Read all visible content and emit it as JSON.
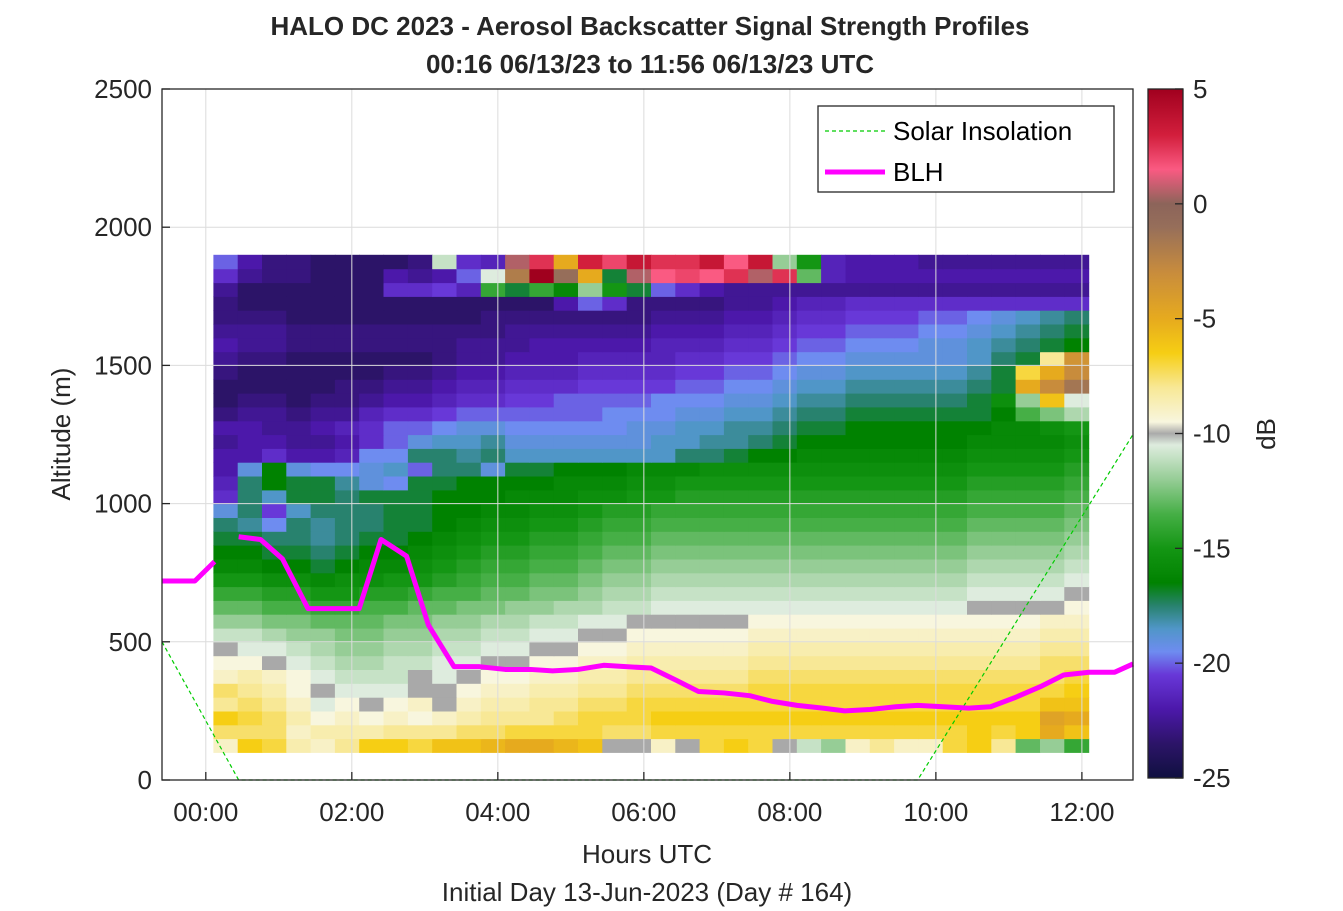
{
  "figure": {
    "title_line1": "HALO DC 2023 - Aerosol Backscatter Signal Strength Profiles",
    "title_line2": "00:16 06/13/23 to 11:56 06/13/23  UTC",
    "footer": "Initial Day 13-Jun-2023 (Day # 164)"
  },
  "chart_data": {
    "type": "heatmap",
    "title": "HALO DC 2023 - Aerosol Backscatter Signal Strength Profiles",
    "subtitle": "00:16 06/13/23 to 11:56 06/13/23  UTC",
    "xlabel": "Hours UTC",
    "ylabel": "Altitude (m)",
    "xlim": [
      -0.6,
      12.7
    ],
    "ylim": [
      0,
      2500
    ],
    "x_ticks": [
      0,
      2,
      4,
      6,
      8,
      10,
      12
    ],
    "x_tick_labels": [
      "00:00",
      "02:00",
      "04:00",
      "06:00",
      "08:00",
      "10:00",
      "12:00"
    ],
    "y_ticks": [
      0,
      500,
      1000,
      1500,
      2000,
      2500
    ],
    "y_tick_labels": [
      "0",
      "500",
      "1000",
      "1500",
      "2000",
      "2500"
    ],
    "grid": true,
    "legend_position": "top-right",
    "colorbar": {
      "label": "dB",
      "range": [
        -25,
        5
      ],
      "ticks": [
        5,
        0,
        -5,
        -10,
        -15,
        -20,
        -25
      ],
      "tick_labels": [
        "5",
        "0",
        "-5",
        "-10",
        "-15",
        "-20",
        "-25"
      ]
    },
    "heatmap": {
      "x_start": 0.27,
      "x_step": 0.333,
      "y_start": 125,
      "y_step": 50,
      "row_order": "bottom-to-top",
      "missing_value": "gap",
      "nan_color": "#a9a9a9",
      "rows": [
        "-9.0,-6.5,-7.0,-8.5,-9.0,-8.0,-6.5,-6.5,-7.0,-6.0,-6.0,-5.5,-5.0,-5.0,-5.5,-6.0,-10.0,-10.0,-9.0,-10.0,-7.0,-6.5,-7.0,-10.0,-11.0,-12.0,-9.0,-8.0,-9.0,-9.0,-7.0,-6.5,-8.0,-13.0,-12.0,-14.0",
        "-7.5,-7.5,-7.5,-9.0,-8.5,-8.5,-8.5,-8.0,-8.0,-8.0,-7.5,-7.5,-7.0,-7.0,-7.0,-7.0,-7.5,-7.5,-7.0,-7.0,-7.0,-7.0,-7.0,-7.0,-7.0,-7.0,-7.0,-7.0,-7.0,-7.0,-7.0,-6.5,-7.0,-6.5,-5.0,-6.0",
        "-6.5,-7.0,-7.5,-8.5,-9.5,-9.0,-9.5,-9.0,-9.5,-9.0,-8.5,-8.0,-8.0,-8.0,-7.5,-7.0,-7.0,-7.0,-6.5,-6.5,-6.5,-6.5,-6.5,-6.5,-6.5,-6.5,-6.5,-6.5,-6.5,-6.5,-6.5,-6.5,-6.5,-6.5,-4.5,-5.0",
        "-8.0,-7.5,-8.0,-9.0,-10.5,-9.5,-10.0,-9.5,-9.0,-10.0,-9.0,-8.5,-8.5,-8.0,-8.0,-7.5,-7.5,-7.0,-7.0,-7.0,-7.0,-7.0,-7.0,-7.0,-7.0,-7.0,-7.0,-7.0,-7.0,-7.0,-7.0,-7.0,-7.0,-7.0,-6.0,-6.0",
        "-7.5,-8.0,-8.5,-9.5,-10.0,-10.5,-10.5,-10.5,-10.0,-10.0,-9.5,-9.0,-9.0,-8.5,-8.5,-8.0,-8.0,-7.5,-7.5,-7.5,-7.5,-7.5,-7.0,-7.0,-7.0,-7.0,-7.0,-7.0,-7.0,-7.0,-7.0,-7.0,-7.0,-7.0,-7.0,-6.5",
        "-9.0,-8.5,-9.0,-9.5,-10.5,-11.0,-11.0,-11.0,-10.0,-10.5,-10.0,-9.5,-9.5,-9.0,-9.0,-8.5,-8.5,-8.0,-8.0,-8.0,-8.0,-8.0,-7.5,-7.5,-7.5,-7.5,-7.5,-7.5,-7.5,-7.5,-7.5,-7.5,-7.5,-7.5,-7.5,-7.0",
        "-9.5,-9.5,-10.0,-10.5,-11.0,-11.5,-11.5,-11.0,-11.0,-10.5,-10.5,-10.0,-10.0,-9.5,-9.5,-9.0,-9.0,-8.5,-8.5,-8.5,-8.5,-8.5,-8.0,-8.0,-8.0,-8.0,-8.0,-8.0,-8.0,-8.0,-8.0,-8.0,-8.0,-8.0,-7.5,-7.5",
        "-10.0,-10.5,-10.5,-11.0,-11.5,-12.0,-12.0,-11.5,-11.5,-11.0,-11.0,-10.5,-10.5,-10.0,-10.0,-9.5,-9.5,-9.0,-9.0,-9.0,-9.0,-9.0,-8.5,-8.5,-8.5,-8.5,-8.5,-8.5,-8.5,-8.5,-8.5,-8.5,-8.5,-8.5,-8.0,-8.0",
        "-11.0,-11.0,-11.5,-12.0,-12.0,-12.5,-12.5,-12.0,-12.0,-11.5,-11.5,-11.0,-11.0,-10.5,-10.5,-10.0,-10.0,-9.5,-9.5,-9.5,-9.5,-9.5,-9.0,-9.0,-9.0,-9.0,-9.0,-9.0,-9.0,-9.0,-9.0,-9.0,-9.0,-9.0,-8.5,-8.5",
        "-12.0,-12.0,-12.5,-12.5,-13.0,-13.0,-13.0,-12.5,-12.5,-12.0,-12.0,-11.5,-11.5,-11.0,-11.0,-10.5,-10.5,-10.0,-10.0,-10.0,-10.0,-10.0,-9.5,-9.5,-9.5,-9.5,-9.5,-9.5,-9.5,-9.5,-9.5,-9.5,-9.5,-9.5,-9.0,-9.0",
        "-13.0,-13.0,-13.5,-13.5,-14.0,-14.0,-13.5,-13.5,-13.0,-13.0,-12.5,-12.5,-12.0,-12.0,-11.5,-11.5,-11.0,-11.0,-10.5,-10.5,-10.5,-10.5,-10.5,-10.5,-10.5,-10.5,-10.5,-10.5,-10.5,-10.5,-10.5,-10.0,-10.0,-10.0,-10.0,-9.5",
        "-14.0,-14.0,-14.5,-14.5,-15.0,-15.0,-14.5,-14.5,-14.0,-13.5,-13.5,-13.0,-13.0,-12.5,-12.5,-12.0,-11.5,-11.5,-11.0,-11.0,-11.0,-11.0,-11.0,-11.0,-11.0,-11.0,-11.0,-11.0,-11.0,-11.0,-11.0,-10.5,-10.5,-10.5,-10.5,-10.0",
        "-15.0,-15.0,-15.5,-15.5,-16.0,-15.5,-15.5,-15.0,-15.0,-14.5,-14.0,-13.5,-13.5,-13.0,-13.0,-12.5,-12.0,-12.0,-11.5,-11.5,-11.5,-11.5,-11.5,-11.5,-11.5,-11.5,-11.5,-11.5,-11.5,-11.5,-11.5,-11.0,-11.0,-11.0,-11.0,-10.5",
        "-16.0,-16.0,-16.5,-16.5,-17.0,-16.5,-16.0,-16.0,-15.5,-15.0,-14.5,-14.0,-14.0,-13.5,-13.5,-13.0,-12.5,-12.5,-12.0,-12.0,-12.0,-12.0,-12.0,-12.0,-12.0,-12.0,-12.0,-12.0,-12.0,-12.0,-12.0,-11.5,-11.5,-11.5,-11.5,-11.0",
        "-16.5,-16.5,-17.0,-17.0,-17.5,-17.0,-16.5,-16.5,-16.0,-15.5,-15.0,-14.5,-14.5,-14.0,-14.0,-13.5,-13.0,-13.0,-12.5,-12.5,-12.5,-12.5,-12.5,-12.5,-12.5,-12.5,-12.5,-12.5,-12.5,-12.5,-12.5,-12.0,-12.0,-12.0,-12.0,-11.5",
        "-17.0,-17.0,-17.5,-17.5,-18.0,-17.5,-17.0,-17.0,-16.5,-16.0,-15.5,-15.0,-15.0,-14.5,-14.5,-14.0,-13.5,-13.5,-13.0,-13.0,-13.0,-13.0,-13.0,-13.0,-13.0,-13.0,-13.0,-13.0,-13.0,-13.0,-13.0,-12.5,-12.5,-12.5,-12.5,-12.0",
        "-17.5,-18.0,-19.5,-17.5,-18.0,-17.5,-17.5,-17.0,-17.0,-16.5,-16.0,-15.5,-15.5,-15.0,-15.0,-14.5,-14.0,-14.0,-13.5,-13.5,-13.5,-13.5,-13.5,-13.5,-13.5,-13.5,-13.5,-13.5,-13.5,-13.5,-13.5,-13.0,-13.0,-13.0,-13.0,-12.5",
        "-19.0,-17.5,-20.5,-18.5,-17.5,-17.5,-17.5,-17.0,-17.0,-16.5,-16.5,-16.0,-16.0,-15.5,-15.5,-15.0,-14.5,-14.5,-14.0,-14.0,-14.0,-14.0,-14.0,-14.0,-14.0,-14.0,-14.0,-14.0,-14.0,-14.0,-14.0,-13.5,-13.5,-13.5,-13.5,-13.0",
        "-21.0,-17.5,-18.5,-17.0,-17.0,-17.5,-17.0,-17.0,-17.0,-16.5,-16.5,-16.5,-16.0,-16.0,-16.0,-15.5,-15.5,-15.0,-15.0,-14.5,-14.5,-14.5,-14.5,-14.5,-14.5,-14.5,-14.5,-14.5,-14.5,-14.5,-14.5,-14.0,-14.0,-14.0,-14.0,-13.5",
        "-21.5,-17.5,-16.5,-17.0,-17.0,-18.0,-19.0,-19.5,-17.0,-17.0,-16.5,-16.5,-16.5,-16.5,-16.0,-16.0,-16.0,-15.5,-15.5,-15.0,-15.0,-15.0,-15.0,-15.0,-15.0,-15.0,-15.0,-15.0,-15.0,-15.0,-15.0,-14.5,-14.5,-14.5,-14.5,-14.0",
        "-22.0,-19.0,-16.5,-19.0,-19.5,-19.5,-19.0,-18.5,-20.0,-17.5,-17.5,-19.0,-17.0,-17.0,-16.5,-16.5,-16.5,-16.0,-16.0,-16.0,-15.5,-15.5,-15.5,-15.5,-15.5,-15.5,-15.5,-15.5,-15.5,-15.5,-15.5,-15.0,-15.0,-15.0,-15.0,-14.5",
        "-22.0,-22.0,-21.0,-22.0,-22.0,-21.5,-19.5,-19.5,-17.5,-17.5,-18.0,-17.5,-18.5,-18.5,-18.5,-18.5,-18.5,-18.5,-18.5,-17.5,-17.5,-17.0,-16.5,-16.5,-16.0,-16.0,-16.0,-16.0,-16.0,-16.0,-16.0,-15.5,-15.5,-15.5,-15.5,-15.0",
        "-22.5,-22.0,-22.0,-22.5,-22.5,-22.0,-21.0,-20.0,-19.0,-18.5,-18.5,-18.0,-19.0,-19.0,-19.0,-19.0,-19.0,-19.0,-18.5,-18.5,-18.0,-18.0,-17.5,-17.0,-16.5,-16.5,-16.5,-16.5,-16.5,-16.5,-16.5,-16.0,-16.0,-16.0,-16.0,-15.5",
        "-22.0,-22.0,-22.5,-22.5,-22.0,-21.5,-21.0,-20.0,-20.0,-19.5,-19.0,-19.0,-19.5,-19.5,-19.5,-19.5,-19.5,-19.0,-19.0,-18.5,-18.5,-18.0,-18.0,-17.5,-17.0,-17.0,-16.5,-16.5,-16.5,-16.5,-16.5,-16.5,-16.0,-16.0,-15.5,-15.0",
        "-23.0,-22.5,-22.5,-23.0,-22.5,-22.5,-21.5,-21.0,-21.0,-20.5,-20.0,-20.0,-20.0,-20.0,-20.0,-20.0,-19.5,-19.5,-19.5,-19.0,-19.0,-18.5,-18.5,-18.0,-17.5,-17.5,-17.0,-17.0,-17.0,-17.0,-17.0,-17.0,-16.5,-13.5,-12.5,-11.5",
        "-23.5,-23.0,-23.0,-23.5,-23.0,-23.0,-22.5,-22.0,-22.0,-21.5,-21.0,-21.0,-20.5,-20.5,-20.0,-20.0,-20.0,-20.0,-19.5,-19.5,-19.5,-19.0,-19.0,-18.5,-18.0,-18.0,-17.5,-17.5,-17.5,-17.5,-17.5,-17.0,-15.5,-12.0,-6.0,-10.5",
        "-23.5,-23.5,-23.5,-23.5,-23.5,-23.0,-23.0,-22.5,-22.5,-22.0,-21.5,-21.5,-21.0,-21.0,-21.0,-20.5,-20.5,-20.5,-20.5,-20.0,-20.0,-19.5,-19.5,-19.0,-18.5,-18.5,-18.0,-18.0,-18.0,-18.0,-18.0,-17.5,-17.0,-5.0,-3.0,-1.5",
        "-23.0,-23.5,-23.5,-23.5,-23.5,-23.5,-23.5,-23.0,-23.0,-22.5,-22.0,-22.0,-21.5,-21.5,-21.5,-21.0,-21.0,-21.0,-21.0,-20.5,-20.5,-20.0,-20.0,-19.5,-19.0,-19.0,-18.5,-18.5,-18.5,-18.5,-18.5,-18.0,-17.0,-7.0,-5.0,-3.0",
        "-22.5,-23.0,-23.0,-23.5,-23.5,-23.5,-23.5,-23.5,-23.5,-23.0,-22.5,-22.5,-22.0,-22.0,-22.0,-21.5,-21.5,-21.5,-21.5,-21.0,-21.0,-20.5,-20.5,-20.0,-19.5,-19.5,-19.0,-19.0,-19.0,-19.0,-19.0,-18.5,-17.5,-17.0,-8.0,-3.5",
        "-22.0,-22.5,-22.5,-23.0,-23.0,-23.0,-23.0,-23.0,-23.0,-23.0,-22.5,-22.5,-22.5,-22.0,-22.0,-22.0,-22.0,-22.0,-21.5,-21.5,-21.5,-21.0,-21.0,-20.5,-20.0,-20.0,-19.5,-19.5,-19.5,-19.0,-19.0,-18.5,-18.0,-17.5,-17.0,-16.5",
        "-22.5,-22.5,-22.5,-23.0,-23.0,-23.0,-23.0,-23.0,-23.0,-23.0,-23.0,-23.0,-22.5,-22.5,-22.5,-22.5,-22.5,-22.5,-22.0,-22.0,-22.0,-21.5,-21.5,-21.0,-20.5,-20.5,-20.0,-20.0,-20.0,-19.5,-19.5,-19.0,-18.5,-18.0,-17.5,-17.0",
        "-23.0,-23.0,-23.0,-23.5,-23.5,-23.5,-23.5,-23.5,-23.5,-23.5,-23.5,-23.0,-23.0,-23.0,-23.0,-23.0,-23.0,-23.0,-22.5,-22.5,-22.5,-22.0,-22.0,-21.5,-21.0,-21.0,-20.5,-20.5,-20.5,-20.0,-20.0,-19.5,-19.0,-18.5,-18.0,-17.5",
        "-23.0,-23.5,-23.5,-23.5,-23.5,-23.5,-23.5,-23.5,-23.5,-23.5,-23.5,-23.5,-23.5,-23.5,-22.0,-20.0,-21.0,-23.0,-23.0,-23.0,-23.0,-22.5,-22.5,-22.0,-21.5,-21.5,-21.0,-21.0,-21.0,-21.0,-21.0,-21.0,-21.0,-21.0,-21.0,-21.0",
        "-22.5,-23.5,-23.5,-23.5,-23.5,-23.5,-23.5,-21.0,-21.0,-20.5,-21.5,-14.0,-17.0,-14.0,-16.0,-12.0,-15.0,-17.0,-20.0,-21.0,-22.0,-22.5,-22.5,-22.5,-22.5,-22.5,-22.5,-22.5,-22.5,-22.5,-22.5,-22.5,-22.5,-22.5,-22.5,-22.5",
        "-21.0,-22.5,-23.0,-23.0,-23.5,-23.5,-23.5,-22.0,-22.5,-22.0,-20.0,-10.5,-2.0,5.0,-1.0,-5.0,-17.0,0.5,1.5,2.0,1.5,2.5,0.5,2.5,-13.0,-21.5,-22.0,-22.0,-22.0,-22.0,-22.0,-22.0,-22.0,-22.0,-22.0,-22.0",
        "-20.0,-22.0,-23.0,-23.0,-23.5,-23.5,-23.5,-23.5,-23.0,-11.0,-21.0,-21.5,0.5,2.5,-5.0,3.0,2.0,3.5,2.5,2.5,3.5,1.5,3.5,-12.0,-15.0,-21.5,-22.0,-22.0,-22.0,-22.5,-22.5,-22.5,-22.5,-22.5,-22.5,-22.5"
      ]
    },
    "series": [
      {
        "name": "Solar Insolation",
        "x": [
          -0.6,
          0.45,
          9.75,
          12.7
        ],
        "y": [
          500,
          0,
          0,
          1250
        ]
      },
      {
        "name": "BLH",
        "segments": [
          {
            "x": [
              -0.6,
              -0.15,
              0.12
            ],
            "y": [
              720,
              720,
              790
            ]
          },
          {
            "x": [
              0.45,
              0.75,
              1.05,
              1.4,
              1.75,
              2.1,
              2.4,
              2.75,
              3.05,
              3.4,
              3.75,
              4.1,
              4.45,
              4.75,
              5.1,
              5.45,
              5.75,
              6.1,
              6.45,
              6.75,
              7.1,
              7.45,
              7.75,
              8.1,
              8.45,
              8.75,
              9.1,
              9.45,
              9.75,
              10.1,
              10.45,
              10.75,
              11.1,
              11.45,
              11.75,
              12.1,
              12.45,
              12.7
            ],
            "y": [
              880,
              870,
              800,
              620,
              620,
              620,
              870,
              810,
              560,
              410,
              410,
              400,
              400,
              395,
              400,
              415,
              410,
              405,
              360,
              320,
              315,
              305,
              285,
              270,
              260,
              250,
              255,
              265,
              270,
              265,
              260,
              265,
              300,
              340,
              380,
              390,
              390,
              420
            ]
          }
        ]
      }
    ]
  }
}
